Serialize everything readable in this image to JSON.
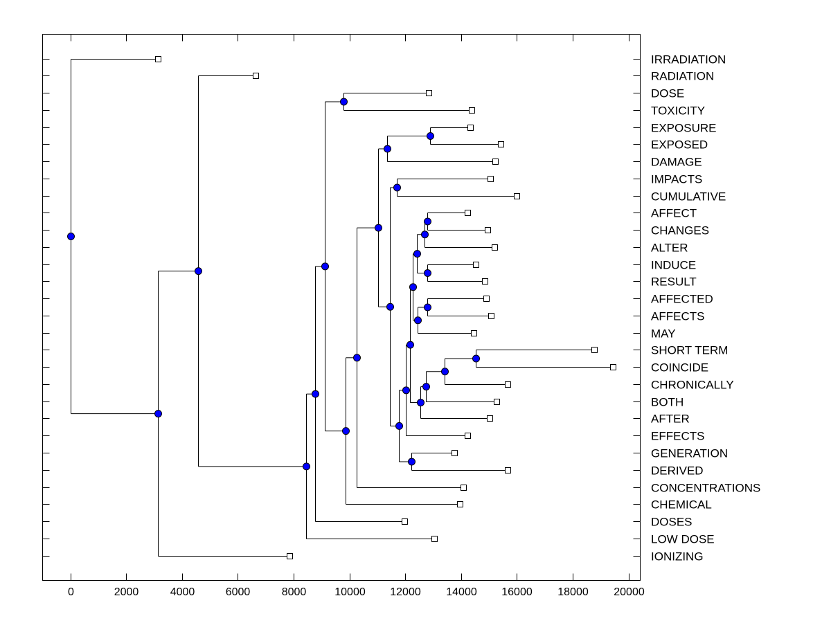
{
  "chart_data": {
    "type": "dendrogram",
    "title": "",
    "xlabel": "",
    "ylabel": "",
    "xlim": [
      -1000,
      20400
    ],
    "xticks": [
      0,
      2000,
      4000,
      6000,
      8000,
      10000,
      12000,
      14000,
      16000,
      18000,
      20000
    ],
    "grid": false,
    "colors": {
      "node_fill": "#0000FF",
      "node_stroke": "#000000",
      "leaf_fill": "#FFFFFF",
      "line": "#000000"
    },
    "leaves": [
      {
        "id": "IRRADIATION",
        "label": "IRRADIATION",
        "value": 3130
      },
      {
        "id": "RADIATION",
        "label": "RADIATION",
        "value": 6650
      },
      {
        "id": "DOSE",
        "label": "DOSE",
        "value": 12850
      },
      {
        "id": "TOXICITY",
        "label": "TOXICITY",
        "value": 14390
      },
      {
        "id": "EXPOSURE",
        "label": "EXPOSURE",
        "value": 14340
      },
      {
        "id": "EXPOSED",
        "label": "EXPOSED",
        "value": 15410
      },
      {
        "id": "DAMAGE",
        "label": "DAMAGE",
        "value": 15230
      },
      {
        "id": "IMPACTS",
        "label": "IMPACTS",
        "value": 15060
      },
      {
        "id": "CUMULATIVE",
        "label": "CUMULATIVE",
        "value": 16000
      },
      {
        "id": "AFFECT",
        "label": "AFFECT",
        "value": 14240
      },
      {
        "id": "CHANGES",
        "label": "CHANGES",
        "value": 14960
      },
      {
        "id": "ALTER",
        "label": "ALTER",
        "value": 15210
      },
      {
        "id": "INDUCE",
        "label": "INDUCE",
        "value": 14540
      },
      {
        "id": "RESULT",
        "label": "RESULT",
        "value": 14840
      },
      {
        "id": "AFFECTED",
        "label": "AFFECTED",
        "value": 14910
      },
      {
        "id": "AFFECTS",
        "label": "AFFECTS",
        "value": 15080
      },
      {
        "id": "MAY",
        "label": "MAY",
        "value": 14460
      },
      {
        "id": "SHORT_TERM",
        "label": "SHORT TERM",
        "value": 18780
      },
      {
        "id": "COINCIDE",
        "label": "COINCIDE",
        "value": 19430
      },
      {
        "id": "CHRONICALLY",
        "label": "CHRONICALLY",
        "value": 15680
      },
      {
        "id": "BOTH",
        "label": "BOTH",
        "value": 15280
      },
      {
        "id": "AFTER",
        "label": "AFTER",
        "value": 15030
      },
      {
        "id": "EFFECTS",
        "label": "EFFECTS",
        "value": 14220
      },
      {
        "id": "GENERATION",
        "label": "GENERATION",
        "value": 13770
      },
      {
        "id": "DERIVED",
        "label": "DERIVED",
        "value": 15680
      },
      {
        "id": "CONCENTRATIONS",
        "label": "CONCENTRATIONS",
        "value": 14090
      },
      {
        "id": "CHEMICAL",
        "label": "CHEMICAL",
        "value": 13970
      },
      {
        "id": "DOSES",
        "label": "DOSES",
        "value": 11980
      },
      {
        "id": "LOW_DOSE",
        "label": "LOW DOSE",
        "value": 13030
      },
      {
        "id": "IONIZING",
        "label": "IONIZING",
        "value": 7860
      }
    ],
    "nodes": [
      {
        "id": "n_dose_tox",
        "value": 9800,
        "children": [
          "DOSE",
          "TOXICITY"
        ]
      },
      {
        "id": "n_exposure_exposed",
        "value": 12900,
        "children": [
          "EXPOSURE",
          "EXPOSED"
        ]
      },
      {
        "id": "n_exp_damage",
        "value": 11340,
        "children": [
          "n_exposure_exposed",
          "DAMAGE"
        ]
      },
      {
        "id": "n_impacts_cum",
        "value": 11690,
        "children": [
          "IMPACTS",
          "CUMULATIVE"
        ]
      },
      {
        "id": "n_affect_changes",
        "value": 12800,
        "children": [
          "AFFECT",
          "CHANGES"
        ]
      },
      {
        "id": "n_ac_alter",
        "value": 12680,
        "children": [
          "n_affect_changes",
          "ALTER"
        ]
      },
      {
        "id": "n_induce_result",
        "value": 12780,
        "children": [
          "INDUCE",
          "RESULT"
        ]
      },
      {
        "id": "n_aca_ir",
        "value": 12430,
        "children": [
          "n_ac_alter",
          "n_induce_result"
        ]
      },
      {
        "id": "n_affected_affects",
        "value": 12780,
        "children": [
          "AFFECTED",
          "AFFECTS"
        ]
      },
      {
        "id": "n_aa_may",
        "value": 12450,
        "children": [
          "n_affected_affects",
          "MAY"
        ]
      },
      {
        "id": "n_group_a",
        "value": 12280,
        "children": [
          "n_aca_ir",
          "n_aa_may"
        ]
      },
      {
        "id": "n_short_coincide",
        "value": 14540,
        "children": [
          "SHORT_TERM",
          "COINCIDE"
        ]
      },
      {
        "id": "n_sc_chron",
        "value": 13400,
        "children": [
          "n_short_coincide",
          "CHRONICALLY"
        ]
      },
      {
        "id": "n_scc_both",
        "value": 12730,
        "children": [
          "n_sc_chron",
          "BOTH"
        ]
      },
      {
        "id": "n_sccb_after",
        "value": 12550,
        "children": [
          "n_scc_both",
          "AFTER"
        ]
      },
      {
        "id": "n_group_b",
        "value": 12180,
        "children": [
          "n_group_a",
          "n_sccb_after"
        ]
      },
      {
        "id": "n_group_c",
        "value": 12010,
        "children": [
          "n_group_b",
          "EFFECTS"
        ]
      },
      {
        "id": "n_gen_derived",
        "value": 12210,
        "children": [
          "GENERATION",
          "DERIVED"
        ]
      },
      {
        "id": "n_group_d",
        "value": 11780,
        "children": [
          "n_group_c",
          "n_gen_derived"
        ]
      },
      {
        "id": "n_group_e",
        "value": 11460,
        "children": [
          "n_impacts_cum",
          "n_group_d"
        ]
      },
      {
        "id": "n_group_f",
        "value": 11040,
        "children": [
          "n_exp_damage",
          "n_group_e"
        ]
      },
      {
        "id": "n_group_g",
        "value": 10250,
        "children": [
          "n_group_f",
          "CONCENTRATIONS"
        ]
      },
      {
        "id": "n_group_h",
        "value": 9870,
        "children": [
          "n_group_g",
          "CHEMICAL"
        ]
      },
      {
        "id": "n_group_i",
        "value": 9130,
        "children": [
          "n_dose_tox",
          "n_group_h"
        ]
      },
      {
        "id": "n_group_j",
        "value": 8760,
        "children": [
          "n_group_i",
          "DOSES"
        ]
      },
      {
        "id": "n_group_k",
        "value": 8460,
        "children": [
          "n_group_j",
          "LOW_DOSE"
        ]
      },
      {
        "id": "n_radiation",
        "value": 4570,
        "children": [
          "RADIATION",
          "n_group_k"
        ]
      },
      {
        "id": "n_ionizing",
        "value": 3130,
        "children": [
          "n_radiation",
          "IONIZING"
        ]
      },
      {
        "id": "root",
        "value": 0,
        "children": [
          "IRRADIATION",
          "n_ionizing"
        ]
      }
    ]
  }
}
